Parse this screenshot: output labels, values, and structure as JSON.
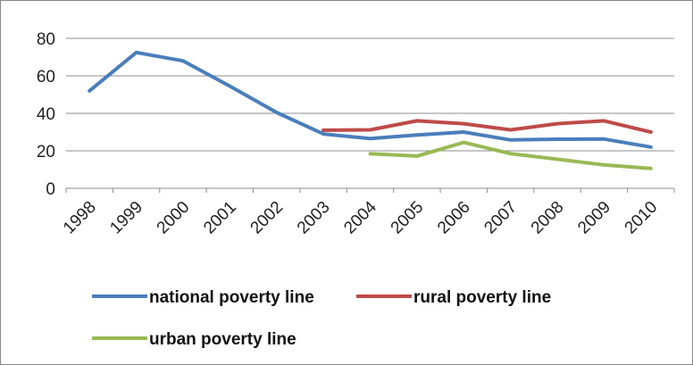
{
  "chart_data": {
    "type": "line",
    "title": "",
    "xlabel": "",
    "ylabel": "",
    "categories": [
      "1998",
      "1999",
      "2000",
      "2001",
      "2002",
      "2003",
      "2004",
      "2005",
      "2006",
      "2007",
      "2008",
      "2009",
      "2010"
    ],
    "y_ticks": [
      "0",
      "20",
      "40",
      "60",
      "80"
    ],
    "ylim": [
      0,
      80
    ],
    "grid": true,
    "legend_position": "bottom",
    "series": [
      {
        "name": "national poverty line",
        "color": "#4a7ebb",
        "values": [
          52,
          72.5,
          68,
          54.5,
          40.5,
          29,
          26.5,
          28.5,
          30,
          25.8,
          26.2,
          26.3,
          22
        ]
      },
      {
        "name": "rural poverty line",
        "color": "#be4b48",
        "values": [
          null,
          null,
          null,
          null,
          null,
          31,
          31.2,
          36,
          34.5,
          31.2,
          34.5,
          36,
          30
        ]
      },
      {
        "name": "urban poverty line",
        "color": "#98b954",
        "values": [
          null,
          null,
          null,
          null,
          null,
          null,
          18.5,
          17.2,
          24.5,
          18.5,
          15.5,
          12.5,
          10.6
        ]
      }
    ]
  }
}
